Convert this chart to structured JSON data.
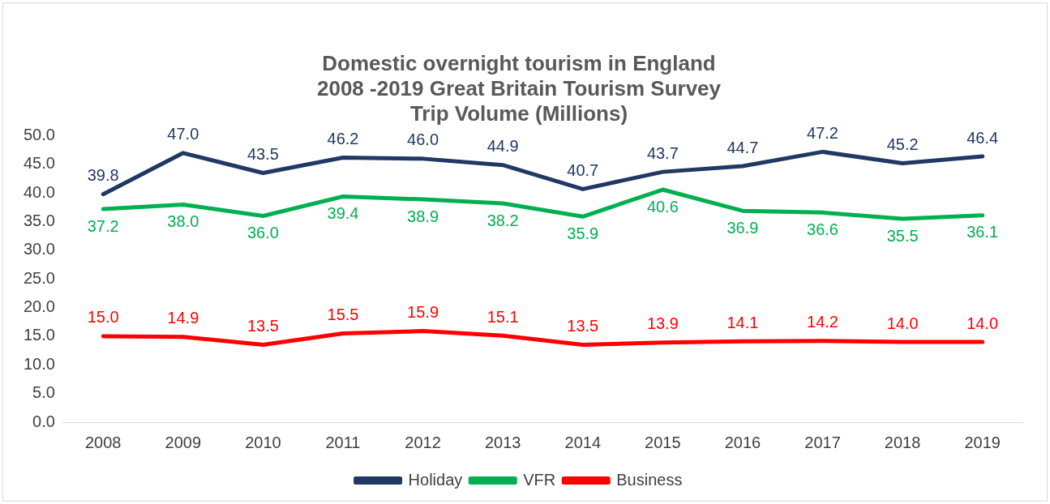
{
  "chart_data": {
    "type": "line",
    "title": "Domestic overnight tourism in England\n2008 -2019 Great Britain Tourism Survey\nTrip Volume (Millions)",
    "categories": [
      "2008",
      "2009",
      "2010",
      "2011",
      "2012",
      "2013",
      "2014",
      "2015",
      "2016",
      "2017",
      "2018",
      "2019"
    ],
    "series": [
      {
        "name": "Holiday",
        "color": "#203864",
        "values": [
          39.8,
          47.0,
          43.5,
          46.2,
          46.0,
          44.9,
          40.7,
          43.7,
          44.7,
          47.2,
          45.2,
          46.4
        ],
        "value_labels": [
          "39.8",
          "47.0",
          "43.5",
          "46.2",
          "46.0",
          "44.9",
          "40.7",
          "43.7",
          "44.7",
          "47.2",
          "45.2",
          "46.4"
        ]
      },
      {
        "name": "VFR",
        "color": "#00b050",
        "values": [
          37.2,
          38.0,
          36.0,
          39.4,
          38.9,
          38.2,
          35.9,
          40.6,
          36.9,
          36.6,
          35.5,
          36.1
        ],
        "value_labels": [
          "37.2",
          "38.0",
          "36.0",
          "39.4",
          "38.9",
          "38.2",
          "35.9",
          "40.6",
          "36.9",
          "36.6",
          "35.5",
          "36.1"
        ]
      },
      {
        "name": "Business",
        "color": "#ff0000",
        "values": [
          15.0,
          14.9,
          13.5,
          15.5,
          15.9,
          15.1,
          13.5,
          13.9,
          14.1,
          14.2,
          14.0,
          14.0
        ],
        "value_labels": [
          "15.0",
          "14.9",
          "13.5",
          "15.5",
          "15.9",
          "15.1",
          "13.5",
          "13.9",
          "14.1",
          "14.2",
          "14.0",
          "14.0"
        ]
      }
    ],
    "ylim": [
      0,
      50
    ],
    "yticks": [
      {
        "value": 0,
        "label": "0.0"
      },
      {
        "value": 5,
        "label": "5.0"
      },
      {
        "value": 10,
        "label": "10.0"
      },
      {
        "value": 15,
        "label": "15.0"
      },
      {
        "value": 20,
        "label": "20.0"
      },
      {
        "value": 25,
        "label": "25.0"
      },
      {
        "value": 30,
        "label": "30.0"
      },
      {
        "value": 35,
        "label": "35.0"
      },
      {
        "value": 40,
        "label": "40.0"
      },
      {
        "value": 45,
        "label": "45.0"
      },
      {
        "value": 50,
        "label": "50.0"
      }
    ],
    "grid": false,
    "legend": "bottom",
    "marker": "none",
    "line_style": "solid"
  }
}
